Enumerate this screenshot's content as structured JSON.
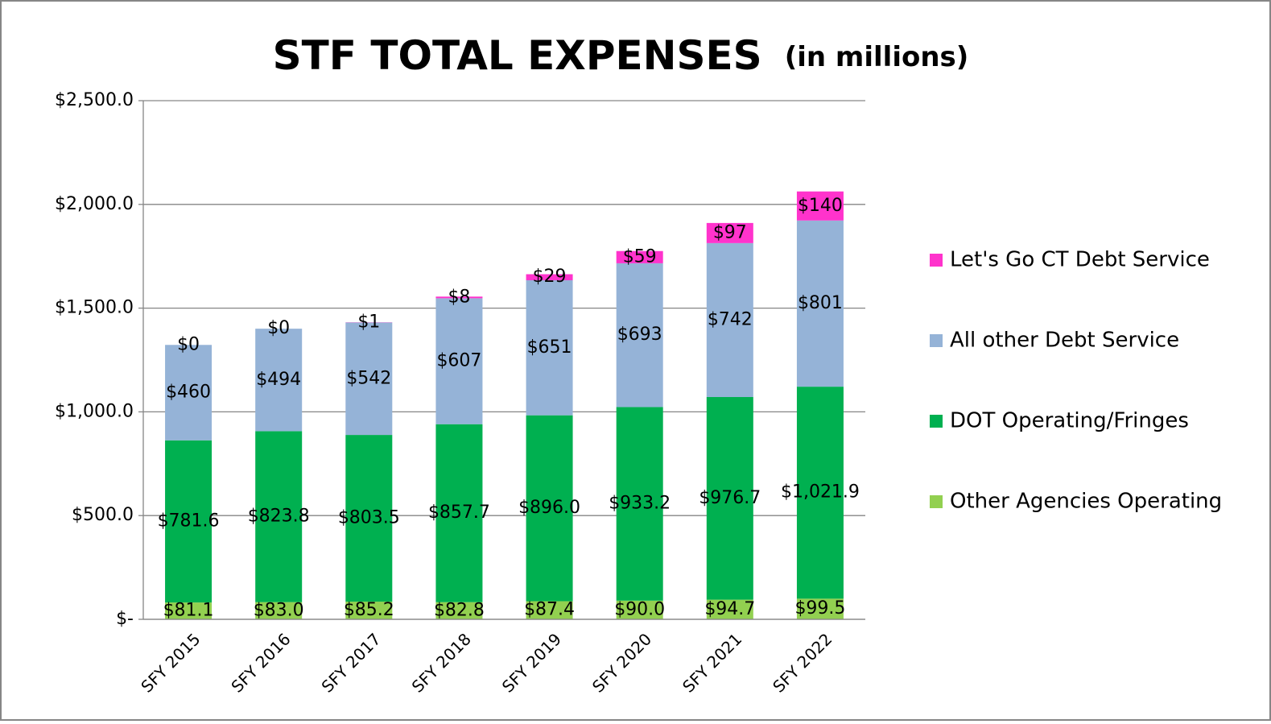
{
  "chart_data": {
    "type": "stacked_bar",
    "title": "STF TOTAL EXPENSES",
    "subtitle": "(in millions)",
    "categories": [
      "SFY 2015",
      "SFY 2016",
      "SFY 2017",
      "SFY 2018",
      "SFY 2019",
      "SFY 2020",
      "SFY 2021",
      "SFY 2022"
    ],
    "series": [
      {
        "name": "Other Agencies Operating",
        "color": "#92d050",
        "values": [
          81.1,
          83.0,
          85.2,
          82.8,
          87.4,
          90.0,
          94.7,
          99.5
        ],
        "value_labels": [
          "$81.1",
          "$83.0",
          "$85.2",
          "$82.8",
          "$87.4",
          "$90.0",
          "$94.7",
          "$99.5"
        ]
      },
      {
        "name": "DOT Operating/Fringes",
        "color": "#00b050",
        "values": [
          781.6,
          823.8,
          803.5,
          857.7,
          896.0,
          933.2,
          976.7,
          1021.9
        ],
        "value_labels": [
          "$781.6",
          "$823.8",
          "$803.5",
          "$857.7",
          "$896.0",
          "$933.2",
          "$976.7",
          "$1,021.9"
        ]
      },
      {
        "name": "All other Debt Service",
        "color": "#95b3d7",
        "values": [
          460,
          494,
          542,
          607,
          651,
          693,
          742,
          801
        ],
        "value_labels": [
          "$460",
          "$494",
          "$542",
          "$607",
          "$651",
          "$693",
          "$742",
          "$801"
        ]
      },
      {
        "name": "Let's Go CT Debt Service",
        "color": "#ff33cc",
        "values": [
          0,
          0,
          1,
          8,
          29,
          59,
          97,
          140
        ],
        "value_labels": [
          "$0",
          "$0",
          "$1",
          "$8",
          "$29",
          "$59",
          "$97",
          "$140"
        ]
      }
    ],
    "ylim": [
      0,
      2500
    ],
    "yticks": [
      {
        "value": 0,
        "label": "$-"
      },
      {
        "value": 500,
        "label": "$500.0"
      },
      {
        "value": 1000,
        "label": "$1,000.0"
      },
      {
        "value": 1500,
        "label": "$1,500.0"
      },
      {
        "value": 2000,
        "label": "$2,000.0"
      },
      {
        "value": 2500,
        "label": "$2,500.0"
      }
    ],
    "grid": true,
    "legend": "right"
  }
}
